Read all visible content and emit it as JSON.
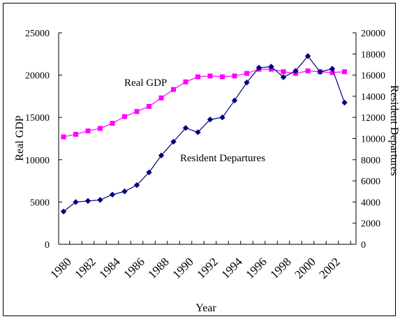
{
  "chart_data": {
    "type": "line",
    "xlabel": "Year",
    "ylabel": "Real GDP",
    "y2label": "Resident Departures",
    "ylim": [
      0,
      25000
    ],
    "y2lim": [
      0,
      20000
    ],
    "y_ticks": [
      "0",
      "5000",
      "10000",
      "15000",
      "20000",
      "25000"
    ],
    "y2_ticks": [
      "0",
      "2000",
      "4000",
      "6000",
      "8000",
      "10000",
      "12000",
      "14000",
      "16000",
      "18000",
      "20000"
    ],
    "x_ticks": [
      "1980",
      "1982",
      "1984",
      "1986",
      "1988",
      "1990",
      "1992",
      "1994",
      "1996",
      "1998",
      "2000",
      "2002"
    ],
    "x": [
      1980,
      1981,
      1982,
      1983,
      1984,
      1985,
      1986,
      1987,
      1988,
      1989,
      1990,
      1991,
      1992,
      1993,
      1994,
      1995,
      1996,
      1997,
      1998,
      1999,
      2000,
      2001,
      2002,
      2003
    ],
    "series": [
      {
        "name": "Real GDP",
        "axis": "left",
        "color": "#ff00ff",
        "marker": "square",
        "values": [
          12700,
          13000,
          13400,
          13700,
          14300,
          15100,
          15700,
          16300,
          17300,
          18300,
          19200,
          19800,
          19900,
          19800,
          19900,
          20200,
          20700,
          20700,
          20400,
          20200,
          20500,
          20400,
          20300,
          20400
        ]
      },
      {
        "name": "Resident Departures",
        "axis": "right",
        "color": "#00007f",
        "marker": "diamond",
        "values": [
          3100,
          4000,
          4100,
          4200,
          4700,
          5000,
          5600,
          6800,
          8400,
          9700,
          11000,
          10600,
          11800,
          12000,
          13600,
          15300,
          16700,
          16800,
          15800,
          16400,
          17800,
          16300,
          16600,
          13400
        ]
      }
    ],
    "annotations": [
      {
        "text": "Real GDP",
        "series": "Real GDP"
      },
      {
        "text": "Resident Departures",
        "series": "Resident Departures"
      }
    ],
    "grid": false,
    "legend": "none"
  }
}
